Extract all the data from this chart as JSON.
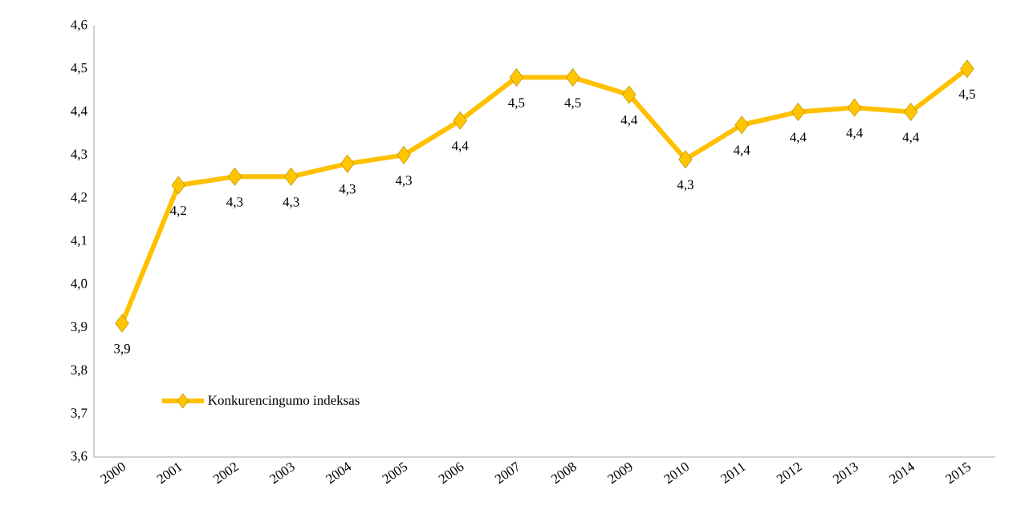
{
  "chart_data": {
    "type": "line",
    "categories": [
      "2000",
      "2001",
      "2002",
      "2003",
      "2004",
      "2005",
      "2006",
      "2007",
      "2008",
      "2009",
      "2010",
      "2011",
      "2012",
      "2013",
      "2014",
      "2015"
    ],
    "series": [
      {
        "name": "Konkurencingumo indeksas",
        "color": "#ffc000",
        "values": [
          3.91,
          4.23,
          4.25,
          4.25,
          4.28,
          4.3,
          4.38,
          4.48,
          4.48,
          4.44,
          4.29,
          4.37,
          4.4,
          4.41,
          4.4,
          4.5
        ],
        "value_labels": [
          "3,9",
          "4,2",
          "4,3",
          "4,3",
          "4,3",
          "4,3",
          "4,4",
          "4,5",
          "4,5",
          "4,4",
          "4,3",
          "4,4",
          "4,4",
          "4,4",
          "4,4",
          "4,5"
        ]
      }
    ],
    "ylim": [
      3.6,
      4.6
    ],
    "yticks": [
      {
        "value": 3.6,
        "label": "3,6"
      },
      {
        "value": 3.7,
        "label": "3,7"
      },
      {
        "value": 3.8,
        "label": "3,8"
      },
      {
        "value": 3.9,
        "label": "3,9"
      },
      {
        "value": 4.0,
        "label": "4,0"
      },
      {
        "value": 4.1,
        "label": "4,1"
      },
      {
        "value": 4.2,
        "label": "4,2"
      },
      {
        "value": 4.3,
        "label": "4,3"
      },
      {
        "value": 4.4,
        "label": "4,4"
      },
      {
        "value": 4.5,
        "label": "4,5"
      },
      {
        "value": 4.6,
        "label": "4,6"
      }
    ],
    "marker": "diamond",
    "legend": "bottom left"
  }
}
